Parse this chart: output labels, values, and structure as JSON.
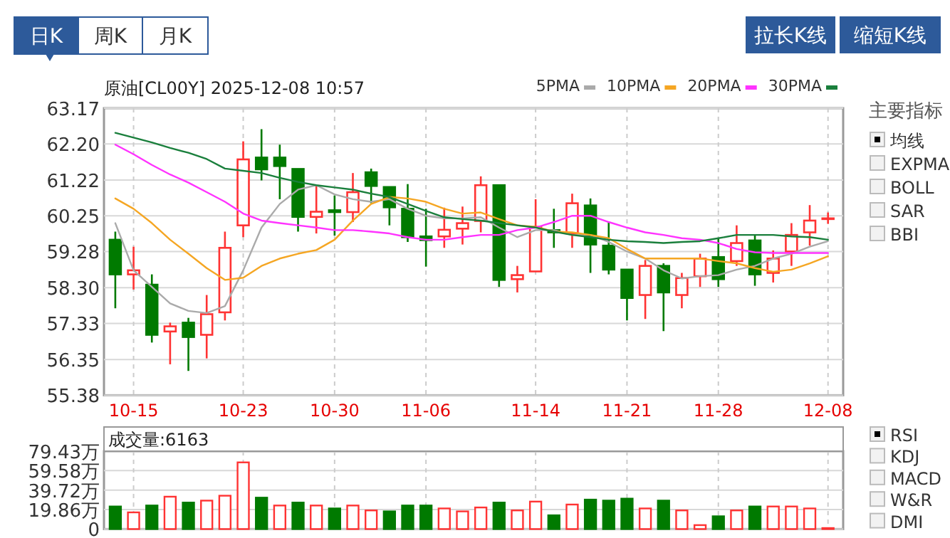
{
  "chart_data": [
    {
      "type": "candlestick",
      "title": "原油[CL00Y] 2025-12-08 10:57",
      "legend": "top right",
      "grid": true,
      "categories": [
        null,
        "10-15",
        null,
        null,
        null,
        null,
        null,
        "10-23",
        null,
        null,
        null,
        null,
        "10-30",
        null,
        null,
        null,
        null,
        "11-06",
        null,
        null,
        null,
        null,
        null,
        "11-14",
        null,
        null,
        null,
        null,
        "11-21",
        null,
        null,
        null,
        null,
        "11-28",
        null,
        null,
        null,
        null,
        null,
        "12-08"
      ],
      "ylim": [
        55.38,
        63.17
      ],
      "yticks": [
        {
          "value": 55.38,
          "label": "55.38"
        },
        {
          "value": 56.35,
          "label": "56.35"
        },
        {
          "value": 57.33,
          "label": "57.33"
        },
        {
          "value": 58.3,
          "label": "58.30"
        },
        {
          "value": 59.28,
          "label": "59.28"
        },
        {
          "value": 60.25,
          "label": "60.25"
        },
        {
          "value": 61.22,
          "label": "61.22"
        },
        {
          "value": 62.2,
          "label": "62.20"
        },
        {
          "value": 63.17,
          "label": "63.17"
        }
      ],
      "ohlc": [
        [
          59.6,
          59.82,
          57.74,
          58.66
        ],
        [
          58.66,
          59.41,
          58.25,
          58.77
        ],
        [
          58.38,
          58.66,
          56.81,
          57.02
        ],
        [
          57.11,
          57.35,
          56.22,
          57.25
        ],
        [
          57.35,
          57.48,
          56.04,
          56.96
        ],
        [
          57.02,
          58.1,
          56.38,
          57.58
        ],
        [
          57.63,
          59.82,
          57.41,
          59.38
        ],
        [
          59.99,
          62.27,
          59.67,
          61.78
        ],
        [
          61.83,
          62.6,
          61.21,
          61.51
        ],
        [
          61.83,
          62.18,
          60.7,
          61.6
        ],
        [
          61.52,
          61.52,
          59.82,
          60.22
        ],
        [
          60.22,
          61.08,
          59.77,
          60.36
        ],
        [
          60.4,
          60.8,
          59.71,
          60.35
        ],
        [
          60.35,
          61.41,
          60.08,
          60.89
        ],
        [
          61.43,
          61.53,
          60.59,
          61.06
        ],
        [
          61.03,
          61.03,
          59.99,
          60.48
        ],
        [
          60.44,
          61.11,
          59.54,
          59.67
        ],
        [
          59.69,
          60.44,
          58.87,
          59.59
        ],
        [
          59.69,
          60.47,
          59.38,
          59.87
        ],
        [
          59.9,
          60.5,
          59.47,
          60.05
        ],
        [
          60.11,
          61.32,
          59.8,
          61.08
        ],
        [
          61.08,
          61.08,
          58.32,
          58.51
        ],
        [
          58.53,
          58.89,
          58.17,
          58.64
        ],
        [
          58.74,
          60.7,
          58.74,
          59.95
        ],
        [
          59.86,
          60.44,
          59.38,
          59.8
        ],
        [
          59.77,
          60.85,
          59.38,
          60.59
        ],
        [
          60.53,
          60.72,
          58.7,
          59.47
        ],
        [
          59.44,
          60.08,
          58.66,
          58.79
        ],
        [
          58.79,
          58.79,
          57.41,
          58.02
        ],
        [
          58.1,
          59.05,
          57.45,
          58.89
        ],
        [
          58.89,
          58.96,
          57.12,
          58.17
        ],
        [
          58.1,
          58.7,
          57.74,
          58.56
        ],
        [
          58.61,
          59.22,
          58.32,
          59.09
        ],
        [
          59.13,
          59.64,
          58.32,
          58.53
        ],
        [
          59.02,
          59.99,
          58.89,
          59.51
        ],
        [
          59.58,
          59.73,
          58.35,
          58.66
        ],
        [
          58.7,
          59.31,
          58.44,
          59.09
        ],
        [
          59.28,
          60.05,
          58.89,
          59.73
        ],
        [
          59.8,
          60.54,
          59.44,
          60.12
        ],
        [
          60.18,
          60.34,
          60.03,
          60.18
        ]
      ],
      "colors": [
        "#007a00",
        "#ff3333",
        "#007a00",
        "#ff3333",
        "#007a00",
        "#ff3333",
        "#ff3333",
        "#ff3333",
        "#007a00",
        "#007a00",
        "#007a00",
        "#ff3333",
        "#007a00",
        "#ff3333",
        "#007a00",
        "#007a00",
        "#007a00",
        "#007a00",
        "#ff3333",
        "#ff3333",
        "#ff3333",
        "#007a00",
        "#ff3333",
        "#ff3333",
        "#007a00",
        "#ff3333",
        "#007a00",
        "#007a00",
        "#007a00",
        "#ff3333",
        "#007a00",
        "#ff3333",
        "#ff3333",
        "#007a00",
        "#ff3333",
        "#007a00",
        "#ff3333",
        "#ff3333",
        "#ff3333",
        "#ff3333"
      ],
      "series": [
        {
          "type": "line",
          "name": "5PMA",
          "color": "#aaaaaa",
          "values": [
            60.05,
            58.77,
            58.32,
            57.87,
            57.67,
            57.61,
            57.8,
            58.77,
            59.93,
            60.57,
            60.96,
            61.08,
            60.83,
            60.7,
            60.63,
            60.7,
            60.44,
            60.25,
            60.18,
            60.18,
            60.21,
            59.93,
            59.67,
            59.86,
            59.86,
            59.73,
            59.73,
            59.54,
            59.28,
            59.09,
            58.77,
            58.55,
            58.61,
            58.64,
            58.79,
            58.89,
            59.09,
            59.22,
            59.41,
            59.56
          ]
        },
        {
          "type": "line",
          "name": "10PMA",
          "color": "#f5a623",
          "values": [
            60.72,
            60.44,
            60.05,
            59.6,
            59.22,
            58.83,
            58.51,
            58.57,
            58.89,
            59.09,
            59.22,
            59.32,
            59.6,
            60.12,
            60.57,
            60.76,
            60.72,
            60.63,
            60.44,
            60.31,
            60.34,
            60.16,
            59.99,
            59.95,
            59.82,
            59.8,
            59.73,
            59.64,
            59.35,
            59.09,
            59.09,
            59.09,
            59.09,
            59.02,
            58.96,
            58.83,
            58.73,
            58.79,
            58.96,
            59.15
          ]
        },
        {
          "type": "line",
          "name": "20PMA",
          "color": "#ff33ff",
          "values": [
            62.18,
            61.92,
            61.63,
            61.37,
            61.15,
            60.89,
            60.63,
            60.31,
            60.12,
            60.05,
            59.99,
            59.93,
            59.86,
            59.86,
            59.82,
            59.77,
            59.67,
            59.6,
            59.6,
            59.67,
            59.73,
            59.73,
            59.86,
            59.93,
            60.08,
            60.25,
            60.25,
            60.08,
            59.93,
            59.8,
            59.73,
            59.64,
            59.6,
            59.51,
            59.35,
            59.26,
            59.24,
            59.24,
            59.24,
            59.24
          ]
        },
        {
          "type": "line",
          "name": "30PMA",
          "color": "#1a7f3c",
          "values": [
            62.5,
            62.37,
            62.24,
            62.09,
            61.96,
            61.79,
            61.53,
            61.47,
            61.41,
            61.28,
            61.17,
            61.08,
            61.02,
            60.96,
            60.85,
            60.76,
            60.57,
            60.38,
            60.21,
            60.16,
            60.12,
            60.05,
            59.99,
            59.93,
            59.82,
            59.73,
            59.67,
            59.6,
            59.56,
            59.54,
            59.51,
            59.54,
            59.56,
            59.64,
            59.73,
            59.73,
            59.73,
            59.69,
            59.67,
            59.6
          ]
        }
      ],
      "annotations": [
        "日K",
        "周K",
        "月K",
        "拉长K线",
        "缩短K线",
        "主要指标",
        "均线",
        "EXPMA",
        "BOLL",
        "SAR",
        "BBI",
        "RSI",
        "KDJ",
        "MACD",
        "W&R",
        "DMI"
      ]
    },
    {
      "type": "bar",
      "tick_labels": "y",
      "grid": true,
      "categories": [
        null,
        null,
        null,
        null,
        null,
        null,
        null,
        null,
        null,
        null,
        null,
        null,
        null,
        null,
        null,
        null,
        null,
        null,
        null,
        null,
        null,
        null,
        null,
        null,
        null,
        null,
        null,
        null,
        null,
        null,
        null,
        null,
        null,
        null,
        null,
        null,
        null,
        null,
        null,
        null
      ],
      "ylim": [
        0,
        79.43
      ],
      "yticks": [
        0,
        {
          "value": 19.86,
          "label": "19.86万"
        },
        {
          "value": 39.72,
          "label": "39.72万"
        },
        {
          "value": 59.58,
          "label": "59.58万"
        },
        {
          "value": 79.43,
          "label": "79.43万"
        }
      ],
      "values": [
        23,
        17,
        24,
        33,
        27,
        29,
        34,
        68,
        32,
        24,
        27,
        24,
        21,
        24,
        19,
        18,
        24,
        24,
        21,
        18,
        22,
        27,
        19,
        28,
        14,
        25,
        30,
        29,
        31,
        21,
        29,
        19,
        4,
        13,
        19,
        23,
        23,
        23,
        21,
        1
      ],
      "colors": [
        "#007a00",
        "#ff3333",
        "#007a00",
        "#ff3333",
        "#007a00",
        "#ff3333",
        "#ff3333",
        "#ff3333",
        "#007a00",
        "#ff3333",
        "#007a00",
        "#ff3333",
        "#007a00",
        "#ff3333",
        "#ff3333",
        "#007a00",
        "#007a00",
        "#007a00",
        "#ff3333",
        "#ff3333",
        "#ff3333",
        "#007a00",
        "#ff3333",
        "#ff3333",
        "#007a00",
        "#ff3333",
        "#007a00",
        "#007a00",
        "#007a00",
        "#ff3333",
        "#007a00",
        "#ff3333",
        "#ff3333",
        "#007a00",
        "#ff3333",
        "#007a00",
        "#ff3333",
        "#ff3333",
        "#ff3333",
        "#ff3333"
      ],
      "annotations": [
        "成交量:6163"
      ]
    }
  ]
}
